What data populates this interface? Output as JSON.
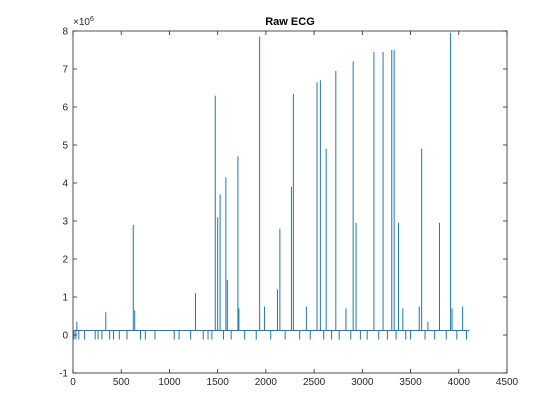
{
  "chart_data": {
    "type": "line",
    "title": "Raw ECG",
    "xlabel": "",
    "ylabel": "",
    "xlim": [
      0,
      4500
    ],
    "ylim": [
      -1,
      8
    ],
    "y_multiplier_label": "×10",
    "y_multiplier_exponent": "6",
    "x_ticks": [
      0,
      500,
      1000,
      1500,
      2000,
      2500,
      3000,
      3500,
      4000,
      4500
    ],
    "y_ticks": [
      -1,
      0,
      1,
      2,
      3,
      4,
      5,
      6,
      7,
      8
    ],
    "grid": false,
    "legend": "none",
    "series_color": "#1f77b4",
    "baseline": 0.12,
    "x_end": 4110,
    "spikes_up": [
      {
        "x": 40,
        "y": 0.35
      },
      {
        "x": 340,
        "y": 0.6
      },
      {
        "x": 625,
        "y": 2.9
      },
      {
        "x": 640,
        "y": 0.65
      },
      {
        "x": 1270,
        "y": 1.1
      },
      {
        "x": 1475,
        "y": 6.3
      },
      {
        "x": 1500,
        "y": 3.1
      },
      {
        "x": 1525,
        "y": 3.7
      },
      {
        "x": 1585,
        "y": 4.15
      },
      {
        "x": 1600,
        "y": 1.45
      },
      {
        "x": 1710,
        "y": 4.7
      },
      {
        "x": 1720,
        "y": 0.7
      },
      {
        "x": 1935,
        "y": 7.85
      },
      {
        "x": 1985,
        "y": 0.75
      },
      {
        "x": 2120,
        "y": 1.2
      },
      {
        "x": 2145,
        "y": 2.8
      },
      {
        "x": 2265,
        "y": 3.9
      },
      {
        "x": 2285,
        "y": 6.35
      },
      {
        "x": 2420,
        "y": 0.75
      },
      {
        "x": 2530,
        "y": 6.65
      },
      {
        "x": 2565,
        "y": 6.7
      },
      {
        "x": 2625,
        "y": 4.9
      },
      {
        "x": 2725,
        "y": 6.95
      },
      {
        "x": 2830,
        "y": 0.7
      },
      {
        "x": 2905,
        "y": 7.2
      },
      {
        "x": 2935,
        "y": 2.95
      },
      {
        "x": 3120,
        "y": 7.45
      },
      {
        "x": 3215,
        "y": 7.45
      },
      {
        "x": 3305,
        "y": 7.5
      },
      {
        "x": 3330,
        "y": 7.5
      },
      {
        "x": 3375,
        "y": 2.95
      },
      {
        "x": 3420,
        "y": 0.7
      },
      {
        "x": 3590,
        "y": 0.75
      },
      {
        "x": 3615,
        "y": 4.9
      },
      {
        "x": 3680,
        "y": 0.35
      },
      {
        "x": 3800,
        "y": 2.95
      },
      {
        "x": 3915,
        "y": 7.95
      },
      {
        "x": 3930,
        "y": 0.7
      },
      {
        "x": 4040,
        "y": 0.75
      }
    ],
    "dips": [
      10,
      30,
      60,
      120,
      230,
      260,
      300,
      380,
      420,
      480,
      560,
      700,
      750,
      850,
      1050,
      1100,
      1220,
      1350,
      1400,
      1440,
      1560,
      1640,
      1780,
      1900,
      2050,
      2200,
      2350,
      2460,
      2600,
      2680,
      2760,
      2880,
      2980,
      3050,
      3170,
      3260,
      3350,
      3450,
      3500,
      3650,
      3750,
      3870,
      3980,
      4080
    ]
  }
}
